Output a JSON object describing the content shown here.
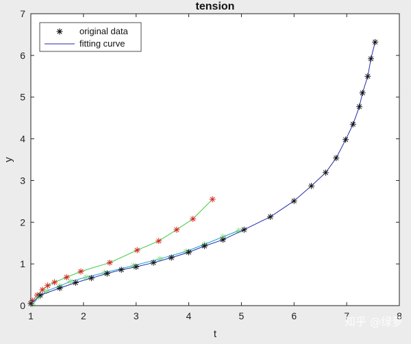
{
  "chart_data": {
    "type": "line",
    "title": "tension",
    "xlabel": "t",
    "ylabel": "y",
    "xlim": [
      1,
      8
    ],
    "ylim": [
      0,
      7
    ],
    "xticks": [
      "1",
      "2",
      "3",
      "4",
      "5",
      "6",
      "7",
      "8"
    ],
    "yticks": [
      "0",
      "1",
      "2",
      "3",
      "4",
      "5",
      "6",
      "7"
    ],
    "grid": false,
    "legend": {
      "position": "top-left",
      "entries": [
        {
          "label": "original data",
          "marker": "*",
          "color": "#000000"
        },
        {
          "label": "fitting curve",
          "line": "solid",
          "color": "#1f2aa8"
        }
      ]
    },
    "series": [
      {
        "color_points": "#d62020",
        "color_line": "#36c836",
        "x": [
          1.03,
          1.12,
          1.22,
          1.32,
          1.45,
          1.68,
          1.95,
          2.5,
          3.02,
          3.43,
          3.77,
          4.08,
          4.45
        ],
        "y": [
          0.12,
          0.25,
          0.38,
          0.48,
          0.56,
          0.68,
          0.82,
          1.03,
          1.33,
          1.55,
          1.82,
          2.08,
          2.55
        ]
      },
      {
        "color_points": "#8ce08c",
        "color_line": "#1aa0c8",
        "x": [
          1.03,
          1.15,
          1.3,
          1.55,
          1.75,
          2.05,
          2.4,
          2.95,
          3.45,
          3.95,
          4.3,
          4.65,
          4.95
        ],
        "y": [
          0.03,
          0.2,
          0.35,
          0.47,
          0.58,
          0.68,
          0.79,
          0.96,
          1.12,
          1.3,
          1.47,
          1.65,
          1.8
        ]
      },
      {
        "color_points": "#111111",
        "color_line": "#1f2aa8",
        "x": [
          1.0,
          1.18,
          1.55,
          1.85,
          2.15,
          2.45,
          2.72,
          3.0,
          3.33,
          3.67,
          4.0,
          4.3,
          4.65,
          5.05,
          5.55,
          6.0,
          6.33,
          6.6,
          6.8,
          6.98,
          7.12,
          7.24,
          7.3,
          7.4,
          7.46,
          7.54
        ],
        "y": [
          0.05,
          0.25,
          0.42,
          0.55,
          0.66,
          0.77,
          0.86,
          0.93,
          1.03,
          1.15,
          1.28,
          1.43,
          1.58,
          1.82,
          2.13,
          2.51,
          2.87,
          3.19,
          3.54,
          3.98,
          4.35,
          4.77,
          5.1,
          5.5,
          5.92,
          6.32
        ]
      }
    ]
  },
  "watermark": "知乎 @绿萝"
}
